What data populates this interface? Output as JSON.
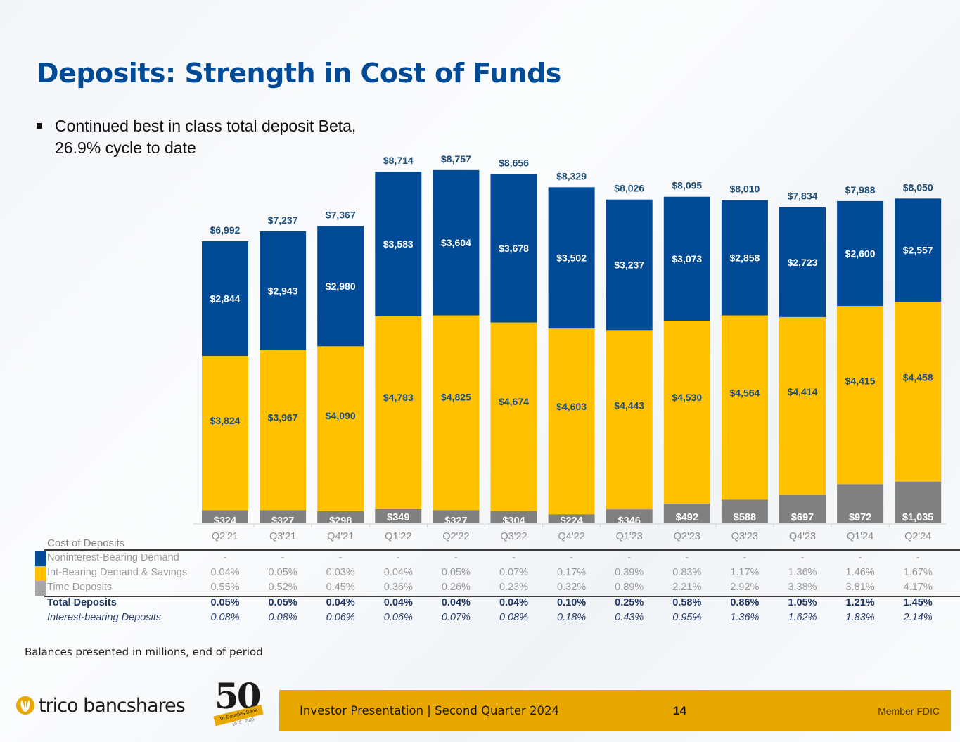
{
  "title": "Deposits: Strength in Cost of Funds",
  "bullets": [
    {
      "line1": "Continued best in class total deposit Beta,",
      "line2": "26.9% cycle to date"
    }
  ],
  "chart_data": {
    "type": "bar",
    "stacked": true,
    "title": "",
    "xlabel": "",
    "ylabel": "",
    "units": "$ millions",
    "categories": [
      "Q2'21",
      "Q3'21",
      "Q4'21",
      "Q1'22",
      "Q2'22",
      "Q3'22",
      "Q4'22",
      "Q1'23",
      "Q2'23",
      "Q3'23",
      "Q4'23",
      "Q1'24",
      "Q2'24"
    ],
    "series": [
      {
        "name": "Time Deposits",
        "color": "#808080",
        "values": [
          324,
          327,
          298,
          349,
          327,
          304,
          224,
          346,
          492,
          588,
          697,
          972,
          1035
        ],
        "labels": [
          "$324",
          "$327",
          "$298",
          "$349",
          "$327",
          "$304",
          "$224",
          "$346",
          "$492",
          "$588",
          "$697",
          "$972",
          "$1,035"
        ]
      },
      {
        "name": "Int-Bearing Demand & Savings",
        "color": "#ffc000",
        "values": [
          3824,
          3967,
          4090,
          4783,
          4825,
          4674,
          4603,
          4443,
          4530,
          4564,
          4414,
          4415,
          4458
        ],
        "labels": [
          "$3,824",
          "$3,967",
          "$4,090",
          "$4,783",
          "$4,825",
          "$4,674",
          "$4,603",
          "$4,443",
          "$4,530",
          "$4,564",
          "$4,414",
          "$4,415",
          "$4,458"
        ]
      },
      {
        "name": "Noninterest-Bearing Demand",
        "color": "#004a96",
        "values": [
          2844,
          2943,
          2980,
          3583,
          3604,
          3678,
          3502,
          3237,
          3073,
          2858,
          2723,
          2600,
          2557
        ],
        "labels": [
          "$2,844",
          "$2,943",
          "$2,980",
          "$3,583",
          "$3,604",
          "$3,678",
          "$3,502",
          "$3,237",
          "$3,073",
          "$2,858",
          "$2,723",
          "$2,600",
          "$2,557"
        ]
      }
    ],
    "totals": [
      6992,
      7237,
      7367,
      8714,
      8757,
      8656,
      8329,
      8026,
      8095,
      8010,
      7834,
      7988,
      8050
    ],
    "total_labels": [
      "$6,992",
      "$7,237",
      "$7,367",
      "$8,714",
      "$8,757",
      "$8,656",
      "$8,329",
      "$8,026",
      "$8,095",
      "$8,010",
      "$7,834",
      "$7,988",
      "$8,050"
    ],
    "ylim": [
      0,
      9000
    ],
    "grid": false,
    "legend": "table-left"
  },
  "cost_table": {
    "header": "Cost of Deposits",
    "rows": [
      {
        "label": "Noninterest-Bearing Demand",
        "swatch": "#004a96",
        "values": [
          "-",
          "-",
          "-",
          "-",
          "-",
          "-",
          "-",
          "-",
          "-",
          "-",
          "-",
          "-",
          "-"
        ]
      },
      {
        "label": "Int-Bearing Demand & Savings",
        "swatch": "#ffc000",
        "values": [
          "0.04%",
          "0.05%",
          "0.03%",
          "0.04%",
          "0.05%",
          "0.07%",
          "0.17%",
          "0.39%",
          "0.83%",
          "1.17%",
          "1.36%",
          "1.46%",
          "1.67%"
        ]
      },
      {
        "label": "Time Deposits",
        "swatch": "#a6a6a6",
        "values": [
          "0.55%",
          "0.52%",
          "0.45%",
          "0.36%",
          "0.26%",
          "0.23%",
          "0.32%",
          "0.89%",
          "2.21%",
          "2.92%",
          "3.38%",
          "3.81%",
          "4.17%"
        ]
      }
    ],
    "total_row": {
      "label": "Total Deposits",
      "values": [
        "0.05%",
        "0.05%",
        "0.04%",
        "0.04%",
        "0.04%",
        "0.04%",
        "0.10%",
        "0.25%",
        "0.58%",
        "0.86%",
        "1.05%",
        "1.21%",
        "1.45%"
      ]
    },
    "ib_row": {
      "label": "Interest-bearing Deposits",
      "values": [
        "0.08%",
        "0.08%",
        "0.06%",
        "0.06%",
        "0.07%",
        "0.08%",
        "0.18%",
        "0.43%",
        "0.95%",
        "1.36%",
        "1.62%",
        "1.83%",
        "2.14%"
      ]
    }
  },
  "note": "Balances presented in millions, end of period",
  "footer": {
    "logo_text": "trico bancshares",
    "anniversary": "50",
    "anniversary_ribbon": "Tri Counties Bank",
    "anniversary_years": "1975 - 2025",
    "presentation": "Investor Presentation  |  Second Quarter 2024",
    "page": "14",
    "fdic": "Member FDIC"
  },
  "colors": {
    "brand_blue": "#004a96",
    "brand_gold": "#ffc000",
    "time_gray": "#808080",
    "footer_gold": "#e8a800"
  }
}
